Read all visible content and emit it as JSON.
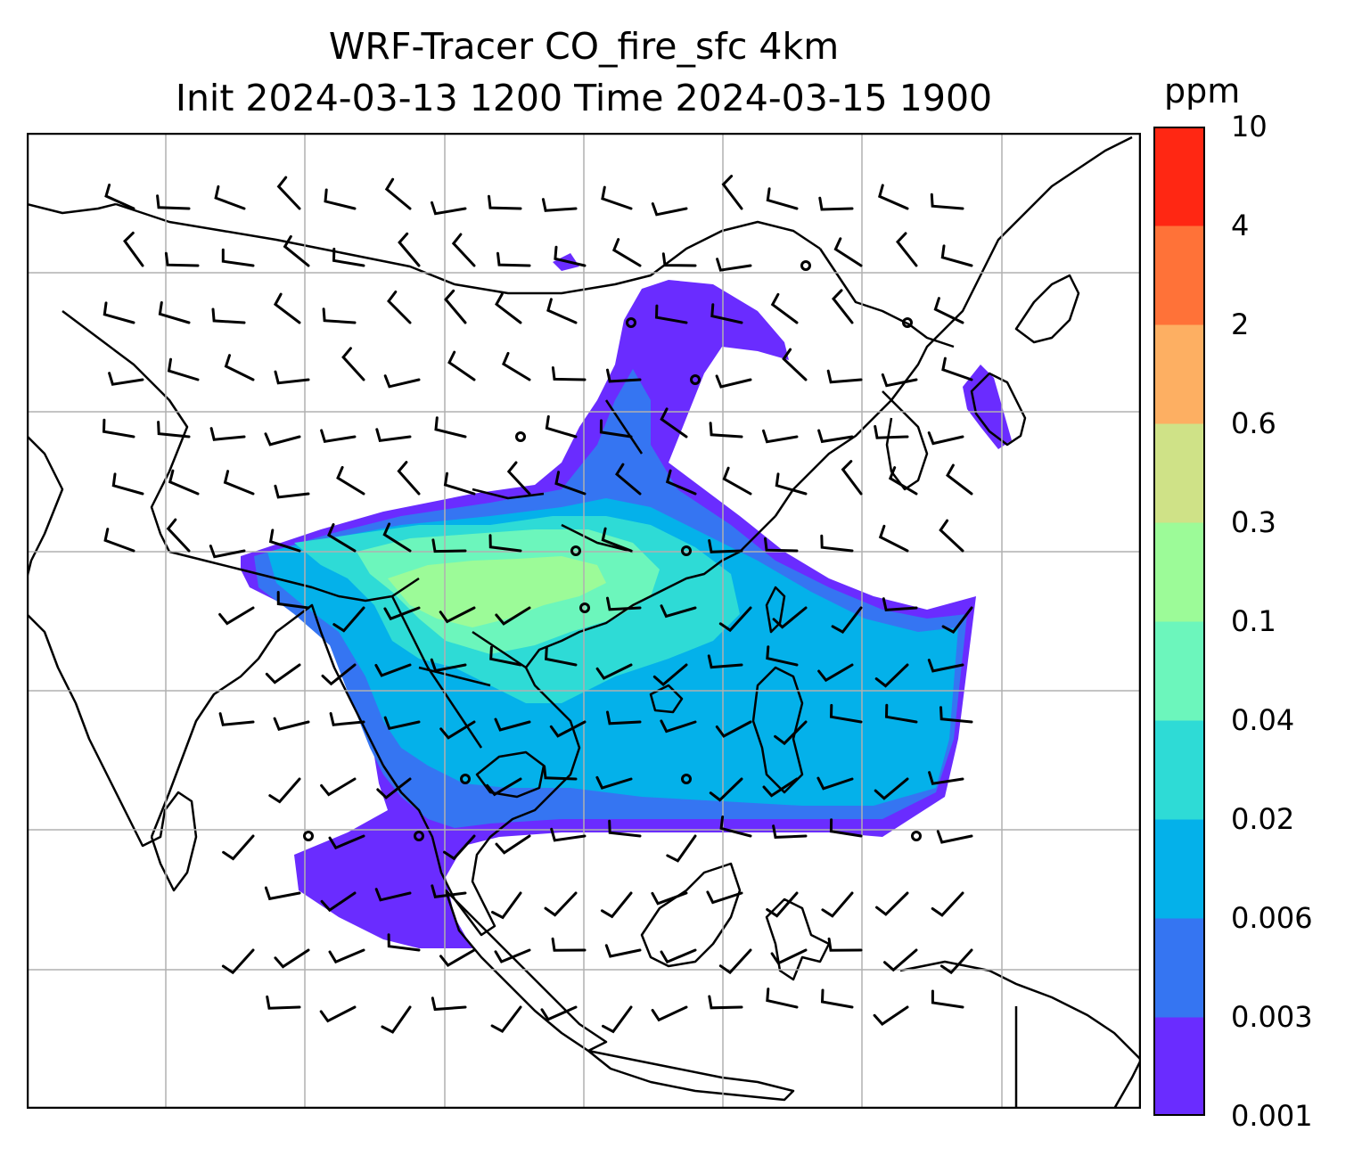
{
  "title": {
    "line1": "WRF-Tracer CO_fire_sfc 4km",
    "line2": "Init 2024-03-13 1200 Time 2024-03-15 1900"
  },
  "colorbar": {
    "unit": "ppm",
    "levels": [
      "0.001",
      "0.003",
      "0.006",
      "0.02",
      "0.04",
      "0.1",
      "0.3",
      "0.6",
      "2",
      "4",
      "10"
    ],
    "colors": [
      "#6a2cff",
      "#3575f2",
      "#04b1ea",
      "#2edbd6",
      "#6cf6bc",
      "#9cfb98",
      "#cfe287",
      "#fdaf62",
      "#ff7238",
      "#ff2713"
    ]
  },
  "map_style": {
    "coastline_color": "#000000",
    "grid_color": "#b0b0b0",
    "barb_color": "#000000",
    "ocean_color": "#ffffff"
  }
}
